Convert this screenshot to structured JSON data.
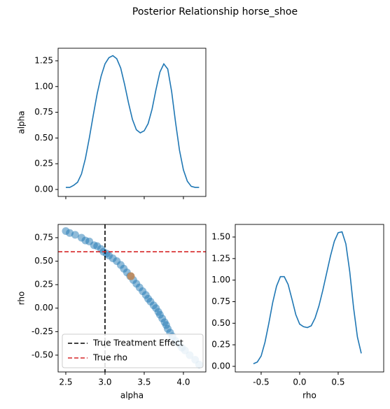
{
  "title": "Posterior Relationship horse_shoe",
  "chart_data": [
    {
      "type": "line",
      "y_label": "alpha",
      "x": [
        2.5,
        2.55,
        2.6,
        2.65,
        2.7,
        2.75,
        2.8,
        2.85,
        2.9,
        2.95,
        3.0,
        3.05,
        3.1,
        3.15,
        3.2,
        3.25,
        3.3,
        3.35,
        3.4,
        3.45,
        3.5,
        3.55,
        3.6,
        3.65,
        3.7,
        3.75,
        3.8,
        3.85,
        3.9,
        3.95,
        4.0,
        4.05,
        4.1,
        4.15,
        4.2
      ],
      "series": [
        {
          "color": "#1f77b4",
          "values": [
            0.02,
            0.02,
            0.04,
            0.07,
            0.15,
            0.3,
            0.5,
            0.72,
            0.93,
            1.1,
            1.22,
            1.28,
            1.3,
            1.27,
            1.18,
            1.02,
            0.84,
            0.68,
            0.58,
            0.55,
            0.57,
            0.64,
            0.78,
            0.97,
            1.14,
            1.22,
            1.17,
            0.95,
            0.65,
            0.38,
            0.19,
            0.08,
            0.03,
            0.02,
            0.02
          ]
        }
      ],
      "xlim": [
        2.402,
        4.286
      ],
      "ylim": [
        -0.068,
        1.372
      ],
      "xticks": [
        2.5,
        3.0,
        3.5,
        4.0
      ],
      "xtick_labels": false,
      "yticks": [
        {
          "value": 0,
          "label": "0.00"
        },
        0.25,
        {
          "value": 0.5,
          "label": "0.50"
        },
        0.75,
        {
          "value": 1,
          "label": "1.00"
        },
        1.25
      ]
    },
    {
      "type": "scatter",
      "x_label": "alpha",
      "y_label": "rho",
      "series": [
        {
          "color": "#1f77b4",
          "opacity": 0.5,
          "x": [
            2.5,
            2.55,
            2.62,
            2.7,
            2.75,
            2.8,
            2.86,
            2.9,
            2.95,
            2.98,
            3.02,
            3.05,
            3.1,
            3.15,
            3.2,
            3.24,
            3.28,
            3.32,
            3.36,
            3.4,
            3.44,
            3.48,
            3.52,
            3.55,
            3.58,
            3.62,
            3.65,
            3.68,
            3.7,
            3.73,
            3.76,
            3.78,
            3.8,
            3.83,
            3.86,
            3.9,
            3.94,
            3.98,
            4.02,
            4.08,
            4.15,
            4.2
          ],
          "values": [
            0.82,
            0.8,
            0.78,
            0.75,
            0.72,
            0.71,
            0.67,
            0.66,
            0.63,
            0.6,
            0.58,
            0.56,
            0.53,
            0.5,
            0.46,
            0.42,
            0.38,
            0.34,
            0.3,
            0.26,
            0.22,
            0.18,
            0.14,
            0.1,
            0.07,
            0.03,
            0,
            -0.04,
            -0.07,
            -0.11,
            -0.15,
            -0.18,
            -0.22,
            -0.26,
            -0.3,
            -0.35,
            -0.38,
            -0.42,
            -0.45,
            -0.5,
            -0.55,
            -0.6
          ]
        },
        {
          "color": "#c08a5a",
          "opacity": 0.9,
          "x": [
            3.33
          ],
          "values": [
            0.34
          ]
        }
      ],
      "reference_lines": [
        {
          "name": "True Treatment Effect",
          "color": "#000000",
          "orientation": "vertical",
          "value": 3.0
        },
        {
          "name": "True rho",
          "color": "#d62728",
          "orientation": "horizontal",
          "value": 0.6
        }
      ],
      "legend": "lower left",
      "xlim": [
        2.402,
        4.286
      ],
      "ylim": [
        -0.679,
        0.891
      ],
      "xticks": [
        2.5,
        {
          "value": 3,
          "label": "3.0"
        },
        3.5,
        {
          "value": 4,
          "label": "4.0"
        }
      ],
      "xtick_labels": true,
      "yticks": [
        {
          "value": -0.5,
          "label": "-0.50"
        },
        -0.25,
        {
          "value": 0,
          "label": "0.00"
        },
        0.25,
        {
          "value": 0.5,
          "label": "0.50"
        },
        0.75
      ]
    },
    {
      "type": "line",
      "x_label": "rho",
      "x": [
        -0.6,
        -0.55,
        -0.5,
        -0.45,
        -0.4,
        -0.35,
        -0.3,
        -0.25,
        -0.2,
        -0.15,
        -0.1,
        -0.05,
        0,
        0.05,
        0.1,
        0.15,
        0.2,
        0.25,
        0.3,
        0.35,
        0.4,
        0.45,
        0.5,
        0.55,
        0.6,
        0.65,
        0.7,
        0.75,
        0.8
      ],
      "series": [
        {
          "color": "#1f77b4",
          "values": [
            0.03,
            0.05,
            0.12,
            0.28,
            0.5,
            0.74,
            0.93,
            1.04,
            1.04,
            0.95,
            0.78,
            0.6,
            0.49,
            0.46,
            0.45,
            0.47,
            0.56,
            0.7,
            0.88,
            1.08,
            1.28,
            1.45,
            1.55,
            1.56,
            1.42,
            1.1,
            0.68,
            0.34,
            0.15
          ]
        }
      ],
      "xlim": [
        -0.836,
        1.091
      ],
      "ylim": [
        -0.065,
        1.646
      ],
      "xticks": [
        -0.5,
        {
          "value": 0,
          "label": "0.0"
        },
        0.5
      ],
      "xtick_labels": true,
      "yticks": [
        {
          "value": 0,
          "label": "0.00"
        },
        0.25,
        {
          "value": 0.5,
          "label": "0.50"
        },
        0.75,
        {
          "value": 1,
          "label": "1.00"
        },
        1.25,
        {
          "value": 1.5,
          "label": "1.50"
        }
      ]
    }
  ]
}
